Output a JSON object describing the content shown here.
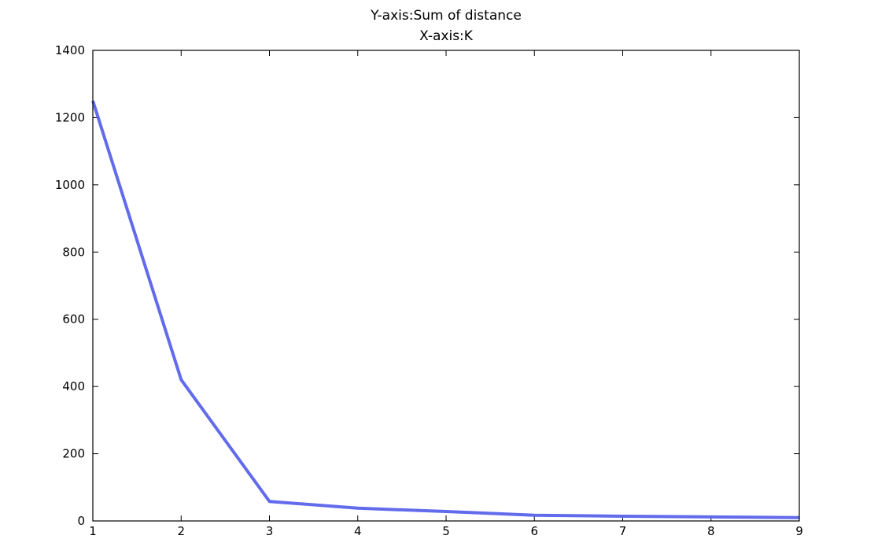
{
  "chart_data": {
    "type": "line",
    "title_lines": [
      "Y-axis:Sum of distance",
      "X-axis:K"
    ],
    "xlabel": "",
    "ylabel": "",
    "x": [
      1,
      2,
      3,
      4,
      5,
      6,
      7,
      8,
      9
    ],
    "series": [
      {
        "values": [
          1250,
          420,
          58,
          38,
          28,
          17,
          14,
          12,
          10
        ],
        "color": "#5a63ea"
      }
    ],
    "xlim": [
      1,
      9
    ],
    "ylim": [
      0,
      1400
    ],
    "xticks": [
      "1",
      "2",
      "3",
      "4",
      "5",
      "6",
      "7",
      "8",
      "9"
    ],
    "yticks": [
      "0",
      "200",
      "400",
      "600",
      "800",
      "1000",
      "1200",
      "1400"
    ],
    "grid": false,
    "legend": "none"
  }
}
